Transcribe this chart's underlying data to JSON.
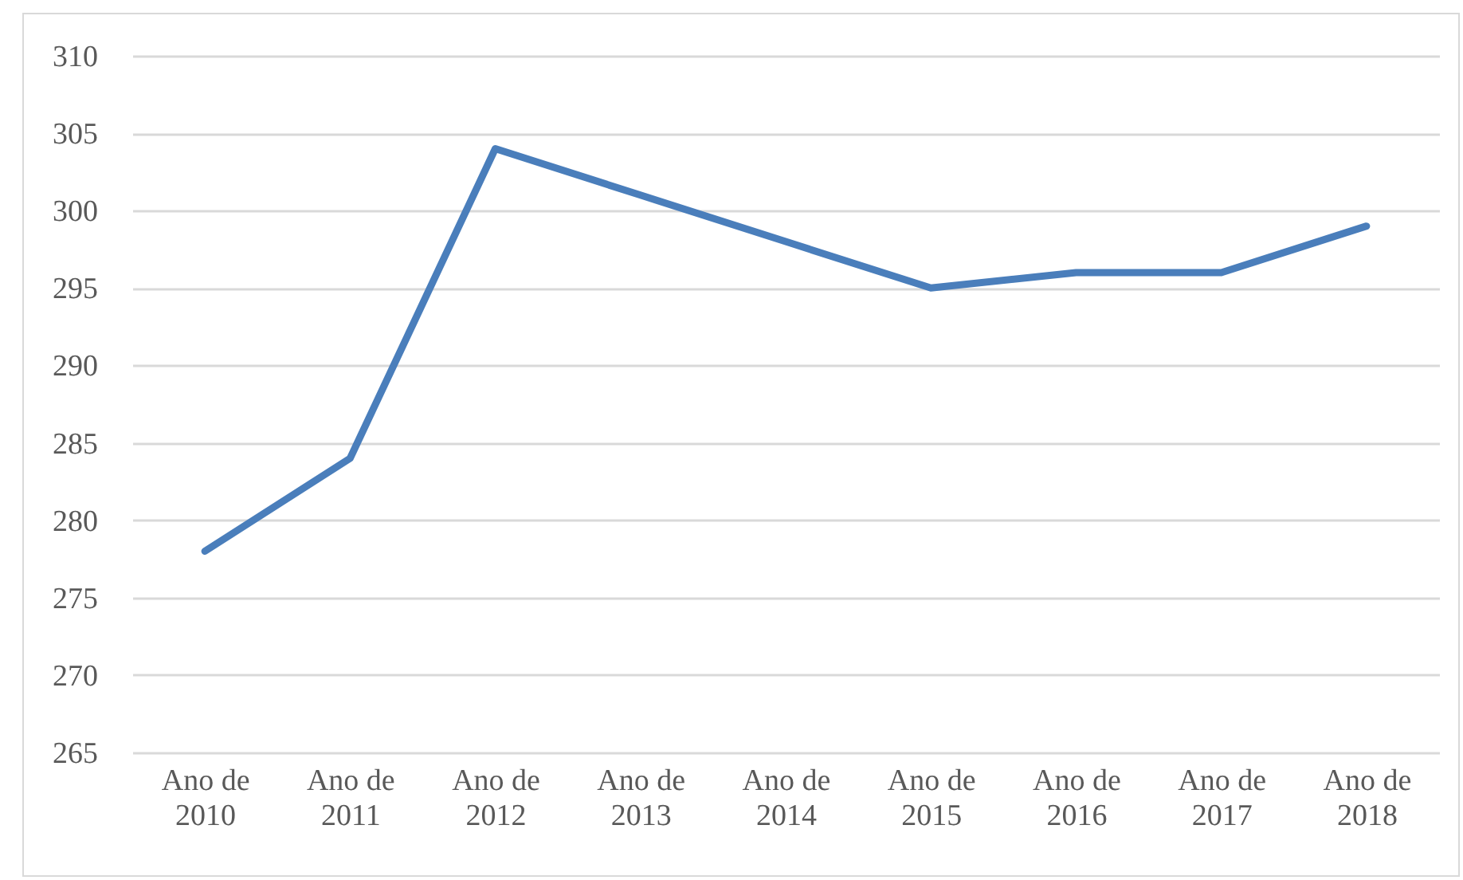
{
  "chart_data": {
    "type": "line",
    "categories": [
      "Ano de 2010",
      "Ano de 2011",
      "Ano de 2012",
      "Ano de 2013",
      "Ano de 2014",
      "Ano de 2015",
      "Ano de 2016",
      "Ano de 2017",
      "Ano de 2018"
    ],
    "series": [
      {
        "color": "#4a7ebb",
        "values": [
          278,
          284,
          304,
          301,
          298,
          295,
          296,
          296,
          299
        ]
      }
    ],
    "ylim": [
      265,
      310
    ],
    "yticks": [
      265,
      270,
      275,
      280,
      285,
      290,
      295,
      300,
      305,
      310
    ],
    "grid": "y",
    "legend": false,
    "marker": "none",
    "line_style": "solid"
  }
}
